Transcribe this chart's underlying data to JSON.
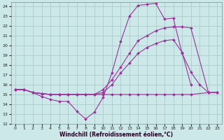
{
  "xlabel": "Windchill (Refroidissement éolien,°C)",
  "bg_color": "#cce8e8",
  "grid_color": "#aacccc",
  "line_color": "#993399",
  "xlim": [
    -0.5,
    23.5
  ],
  "ylim": [
    12,
    24.4
  ],
  "xticks": [
    0,
    1,
    2,
    3,
    4,
    5,
    6,
    7,
    8,
    9,
    10,
    11,
    12,
    13,
    14,
    15,
    16,
    17,
    18,
    19,
    20,
    21,
    22,
    23
  ],
  "yticks": [
    12,
    13,
    14,
    15,
    16,
    17,
    18,
    19,
    20,
    21,
    22,
    23,
    24
  ],
  "series": [
    {
      "x": [
        0,
        1,
        2,
        3,
        4,
        5,
        6,
        7,
        8,
        9,
        10,
        11,
        12,
        13,
        14,
        15,
        16,
        17,
        18,
        19,
        20,
        21,
        22,
        23
      ],
      "y": [
        15.5,
        15.5,
        15.2,
        14.8,
        14.5,
        14.3,
        14.3,
        13.3,
        12.5,
        13.2,
        14.7,
        17.2,
        20.4,
        23.0,
        24.1,
        24.2,
        24.3,
        22.7,
        22.8,
        19.2,
        17.3,
        16.0,
        15.2,
        15.2
      ]
    },
    {
      "x": [
        0,
        1,
        2,
        3,
        4,
        5,
        6,
        7,
        8,
        9,
        10,
        11,
        12,
        13,
        14,
        15,
        16,
        17,
        18,
        19,
        20,
        22,
        23
      ],
      "y": [
        15.5,
        15.5,
        15.2,
        15.1,
        15.0,
        15.0,
        15.0,
        15.0,
        15.0,
        15.0,
        15.5,
        16.5,
        17.8,
        19.2,
        20.5,
        21.0,
        21.5,
        21.8,
        21.9,
        21.9,
        21.8,
        15.2,
        15.2
      ]
    },
    {
      "x": [
        0,
        1,
        2,
        3,
        4,
        5,
        6,
        7,
        8,
        9,
        10,
        11,
        12,
        13,
        14,
        15,
        16,
        17,
        18,
        19,
        20,
        21,
        22,
        23
      ],
      "y": [
        15.5,
        15.5,
        15.2,
        15.1,
        15.0,
        15.0,
        15.0,
        15.0,
        15.0,
        15.0,
        15.2,
        16.0,
        17.2,
        18.2,
        19.2,
        19.8,
        20.2,
        20.5,
        20.6,
        19.3,
        16.0,
        null,
        null,
        null
      ]
    },
    {
      "x": [
        0,
        1,
        2,
        3,
        4,
        5,
        6,
        7,
        8,
        9,
        10,
        11,
        12,
        13,
        14,
        15,
        16,
        17,
        18,
        19,
        20,
        22,
        23
      ],
      "y": [
        15.5,
        15.5,
        15.2,
        15.1,
        15.0,
        15.0,
        15.0,
        15.0,
        15.0,
        15.0,
        15.0,
        15.0,
        15.0,
        15.0,
        15.0,
        15.0,
        15.0,
        15.0,
        15.0,
        15.0,
        15.0,
        15.2,
        15.2
      ]
    }
  ]
}
